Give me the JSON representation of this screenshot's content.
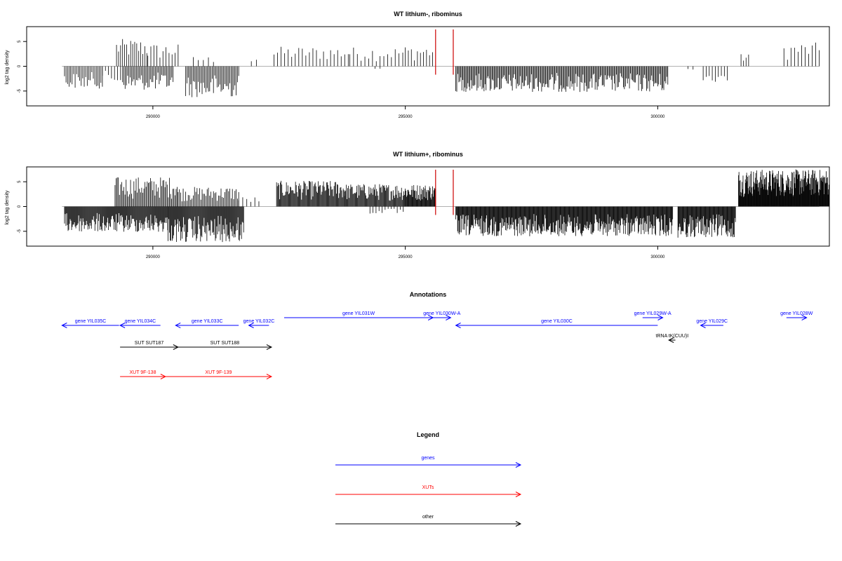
{
  "colors": {
    "gene": "#0000ff",
    "xut": "#ff0000",
    "other": "#000000",
    "signal": "#000000",
    "marker": "#cc0000",
    "baseline": "#999999"
  },
  "chart_data": [
    {
      "type": "bar",
      "title": "WT lithium-, ribominus",
      "ylabel": "log2 tag density",
      "xlim": [
        287500,
        303400
      ],
      "ylim": [
        -8,
        8
      ],
      "xticks": [
        290000,
        295000,
        300000
      ],
      "xtick_labels": [
        "290000",
        "295000",
        "300000"
      ],
      "yticks": [
        5,
        0,
        -5
      ],
      "ytick_labels": [
        "5",
        "0",
        "-5"
      ],
      "red_markers": [
        295600,
        295950
      ],
      "forward_segments": [
        {
          "start": 289280,
          "end": 289900,
          "step": 40,
          "max": 5.5
        },
        {
          "start": 289900,
          "end": 290550,
          "step": 60,
          "max": 4.6
        },
        {
          "start": 290800,
          "end": 291200,
          "step": 100,
          "max": 2.0
        },
        {
          "start": 291950,
          "end": 292050,
          "step": 100,
          "max": 2.4
        },
        {
          "start": 292400,
          "end": 293900,
          "step": 70,
          "max": 4.0
        },
        {
          "start": 293900,
          "end": 295000,
          "step": 75,
          "max": 3.9
        },
        {
          "start": 295000,
          "end": 295550,
          "step": 60,
          "max": 4.2
        },
        {
          "start": 301650,
          "end": 301800,
          "step": 50,
          "max": 2.5
        },
        {
          "start": 302500,
          "end": 303200,
          "step": 70,
          "max": 4.8
        }
      ],
      "reverse_segments": [
        {
          "start": 288250,
          "end": 289000,
          "step": 30,
          "max": -4.5
        },
        {
          "start": 289000,
          "end": 289400,
          "step": 60,
          "max": -3.5
        },
        {
          "start": 289400,
          "end": 290400,
          "step": 25,
          "max": -4.8
        },
        {
          "start": 290650,
          "end": 291700,
          "step": 25,
          "max": -6.3
        },
        {
          "start": 294400,
          "end": 294500,
          "step": 100,
          "max": -0.8
        },
        {
          "start": 296000,
          "end": 300200,
          "step": 20,
          "max": -5.2
        },
        {
          "start": 300600,
          "end": 300700,
          "step": 100,
          "max": -1.0
        },
        {
          "start": 300900,
          "end": 301400,
          "step": 60,
          "max": -3.2
        }
      ]
    },
    {
      "type": "bar",
      "title": "WT lithium+, ribominus",
      "ylabel": "log2 tag density",
      "xlim": [
        287500,
        303400
      ],
      "ylim": [
        -8,
        8
      ],
      "xticks": [
        290000,
        295000,
        300000
      ],
      "xtick_labels": [
        "290000",
        "295000",
        "300000"
      ],
      "yticks": [
        5,
        0,
        -5
      ],
      "ytick_labels": [
        "5",
        "0",
        "-5"
      ],
      "red_markers": [
        295600,
        295950
      ],
      "forward_segments": [
        {
          "start": 289250,
          "end": 290500,
          "step": 22,
          "max": 6.0
        },
        {
          "start": 290500,
          "end": 291700,
          "step": 25,
          "max": 4.0
        },
        {
          "start": 291700,
          "end": 292100,
          "step": 80,
          "max": 2.0
        },
        {
          "start": 292450,
          "end": 293800,
          "step": 15,
          "max": 5.2
        },
        {
          "start": 293800,
          "end": 295000,
          "step": 15,
          "max": 4.6
        },
        {
          "start": 295000,
          "end": 295600,
          "step": 12,
          "max": 4.5
        },
        {
          "start": 301600,
          "end": 303400,
          "step": 9,
          "max": 7.5
        }
      ],
      "reverse_segments": [
        {
          "start": 288250,
          "end": 290300,
          "step": 14,
          "max": -5.2
        },
        {
          "start": 290300,
          "end": 291800,
          "step": 14,
          "max": -7.3
        },
        {
          "start": 294300,
          "end": 295000,
          "step": 60,
          "max": -1.5
        },
        {
          "start": 296000,
          "end": 300300,
          "step": 12,
          "max": -6.0
        },
        {
          "start": 300400,
          "end": 301550,
          "step": 12,
          "max": -6.3
        }
      ]
    }
  ],
  "annotations": {
    "title": "Annotations",
    "features": [
      {
        "label": "gene YIL035C",
        "kind": "gene",
        "start": 288200,
        "end": 289330,
        "strand": "-"
      },
      {
        "label": "gene YIL034C",
        "kind": "gene",
        "start": 289350,
        "end": 290150,
        "strand": "-"
      },
      {
        "label": "gene YIL033C",
        "kind": "gene",
        "start": 290450,
        "end": 291700,
        "strand": "-"
      },
      {
        "label": "gene YIL032C",
        "kind": "gene",
        "start": 291900,
        "end": 292300,
        "strand": "-"
      },
      {
        "label": "gene YIL031W",
        "kind": "gene",
        "start": 292600,
        "end": 295550,
        "strand": "+"
      },
      {
        "label": "gene YIL030W-A",
        "kind": "gene",
        "start": 295550,
        "end": 295900,
        "strand": "+"
      },
      {
        "label": "gene YIL030C",
        "kind": "gene",
        "start": 296000,
        "end": 300000,
        "strand": "-"
      },
      {
        "label": "gene YIL029W-A",
        "kind": "gene",
        "start": 299700,
        "end": 300100,
        "strand": "+"
      },
      {
        "label": "tRNA tK(CUU)I",
        "kind": "other",
        "start": 300220,
        "end": 300350,
        "strand": "-"
      },
      {
        "label": "gene YIL029C",
        "kind": "gene",
        "start": 300850,
        "end": 301300,
        "strand": "-"
      },
      {
        "label": "gene YIL028W",
        "kind": "gene",
        "start": 302550,
        "end": 302950,
        "strand": "+"
      },
      {
        "label": "SUT SUT187",
        "kind": "other",
        "start": 289350,
        "end": 290500,
        "strand": "+"
      },
      {
        "label": "SUT SUT188",
        "kind": "other",
        "start": 290500,
        "end": 292350,
        "strand": "+"
      },
      {
        "label": "XUT 9F-138",
        "kind": "xut",
        "start": 289350,
        "end": 290250,
        "strand": "+"
      },
      {
        "label": "XUT 9F-139",
        "kind": "xut",
        "start": 290250,
        "end": 292350,
        "strand": "+"
      }
    ]
  },
  "legend": {
    "title": "Legend",
    "items": [
      {
        "label": "genes",
        "kind": "gene"
      },
      {
        "label": "XUTs",
        "kind": "xut"
      },
      {
        "label": "other",
        "kind": "other"
      }
    ]
  }
}
